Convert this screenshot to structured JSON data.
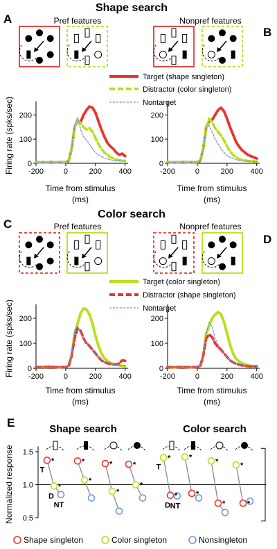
{
  "colors": {
    "shape": "#e8352f",
    "color": "#b8e01a",
    "nonsingleton": "#6f96d8",
    "gray": "#888888",
    "black": "#000000"
  },
  "titles": {
    "top": "Shape search",
    "middle": "Color search",
    "E_left": "Shape search",
    "E_right": "Color search"
  },
  "panel_letters": {
    "A": "A",
    "B": "B",
    "C": "C",
    "D": "D",
    "E": "E"
  },
  "subtitles": {
    "pref": "Pref features",
    "nonpref": "Nonpref features"
  },
  "legend_shape": {
    "target": "Target (shape singleton)",
    "distractor": "Distractor (color singleton)",
    "nontarget": "Nontarget"
  },
  "legend_color": {
    "target": "Target (color singleton)",
    "distractor": "Distractor (shape singleton)",
    "nontarget": "Nontarget"
  },
  "axes": {
    "xlabel_line1": "Time from stimulus",
    "xlabel_line2": "(ms)",
    "ylabel": "Firing rate (spks/sec)",
    "xticks": [
      "-200",
      "0",
      "200",
      "400"
    ],
    "yticks": [
      "0",
      "100",
      "200"
    ],
    "e_ylabel": "Normalized response",
    "e_yticks": [
      "0.5",
      "1.0",
      "1.5"
    ]
  },
  "e_labels": {
    "T": "T",
    "D": "D",
    "NT": "NT",
    "star": "*"
  },
  "e_legend": {
    "shape": "Shape singleton",
    "color": "Color singleton",
    "non": "Nonsingleton"
  },
  "chart_data": [
    {
      "type": "line",
      "panel": "A",
      "title": "Pref features",
      "xlabel": "Time from stimulus (ms)",
      "ylabel": "Firing rate (spks/sec)",
      "xlim": [
        -200,
        420
      ],
      "ylim": [
        0,
        250
      ],
      "series": [
        {
          "name": "Target (shape singleton)",
          "style": "solid",
          "color": "#e8352f",
          "x": [
            -200,
            -150,
            -100,
            -50,
            0,
            20,
            40,
            60,
            80,
            100,
            120,
            140,
            160,
            180,
            200,
            220,
            240,
            260,
            280,
            300,
            320,
            340,
            360,
            380,
            400
          ],
          "y": [
            5,
            4,
            5,
            4,
            5,
            10,
            60,
            150,
            175,
            170,
            200,
            220,
            235,
            230,
            210,
            175,
            140,
            110,
            85,
            70,
            60,
            45,
            35,
            40,
            30
          ]
        },
        {
          "name": "Distractor (color singleton)",
          "style": "dashed",
          "color": "#b8e01a",
          "x": [
            -200,
            -150,
            -100,
            -50,
            0,
            20,
            40,
            60,
            80,
            100,
            120,
            140,
            160,
            180,
            200,
            220,
            240,
            260,
            280,
            300,
            320,
            340,
            360,
            380,
            400
          ],
          "y": [
            5,
            4,
            5,
            4,
            5,
            10,
            60,
            150,
            180,
            165,
            150,
            140,
            145,
            130,
            105,
            80,
            60,
            45,
            35,
            25,
            20,
            15,
            12,
            12,
            10
          ]
        },
        {
          "name": "Nontarget",
          "style": "dotted",
          "color": "#6f96d8",
          "x": [
            -200,
            -150,
            -100,
            -50,
            0,
            20,
            40,
            60,
            80,
            100,
            120,
            140,
            160,
            180,
            200,
            220,
            240,
            260,
            280,
            300,
            320,
            340,
            360,
            380,
            400
          ],
          "y": [
            5,
            4,
            5,
            4,
            5,
            10,
            60,
            160,
            190,
            140,
            110,
            95,
            80,
            60,
            45,
            35,
            28,
            22,
            18,
            15,
            12,
            10,
            10,
            9,
            8
          ]
        }
      ]
    },
    {
      "type": "line",
      "panel": "B",
      "title": "Nonpref features",
      "xlabel": "Time from stimulus (ms)",
      "ylim": [
        0,
        250
      ],
      "xlim": [
        -200,
        420
      ],
      "series": [
        {
          "name": "Target (shape singleton)",
          "style": "solid",
          "color": "#e8352f",
          "x": [
            -200,
            -150,
            -100,
            -50,
            0,
            20,
            40,
            60,
            80,
            100,
            120,
            140,
            160,
            180,
            200,
            220,
            240,
            260,
            280,
            300,
            320,
            340,
            360,
            380,
            400
          ],
          "y": [
            5,
            4,
            5,
            4,
            5,
            10,
            60,
            150,
            175,
            180,
            200,
            220,
            230,
            215,
            185,
            150,
            120,
            90,
            70,
            55,
            45,
            35,
            30,
            25,
            20
          ]
        },
        {
          "name": "Distractor (color singleton)",
          "style": "dashed",
          "color": "#b8e01a",
          "x": [
            -200,
            -150,
            -100,
            -50,
            0,
            20,
            40,
            60,
            80,
            100,
            120,
            140,
            160,
            180,
            200,
            220,
            240,
            260,
            280,
            300,
            320,
            340,
            360,
            380,
            400
          ],
          "y": [
            5,
            4,
            5,
            4,
            5,
            10,
            60,
            150,
            185,
            170,
            145,
            130,
            115,
            95,
            70,
            50,
            35,
            25,
            18,
            15,
            12,
            10,
            9,
            8,
            8
          ]
        },
        {
          "name": "Nontarget",
          "style": "dotted",
          "color": "#6f96d8",
          "x": [
            -200,
            -150,
            -100,
            -50,
            0,
            20,
            40,
            60,
            80,
            100,
            120,
            140,
            160,
            180,
            200,
            220,
            240,
            260,
            280,
            300,
            320,
            340,
            360,
            380,
            400
          ],
          "y": [
            5,
            4,
            5,
            4,
            5,
            10,
            60,
            150,
            155,
            130,
            100,
            80,
            60,
            45,
            32,
            25,
            20,
            15,
            12,
            10,
            9,
            8,
            8,
            7,
            7
          ]
        }
      ]
    },
    {
      "type": "line",
      "panel": "C",
      "title": "Pref features",
      "xlabel": "Time from stimulus (ms)",
      "ylabel": "Firing rate (spks/sec)",
      "xlim": [
        -200,
        420
      ],
      "ylim": [
        0,
        250
      ],
      "series": [
        {
          "name": "Target (color singleton)",
          "style": "solid",
          "color": "#b8e01a",
          "x": [
            -200,
            -150,
            -100,
            -50,
            0,
            20,
            40,
            60,
            80,
            100,
            120,
            140,
            160,
            180,
            200,
            220,
            240,
            260,
            280,
            300,
            320,
            340,
            360,
            380,
            400
          ],
          "y": [
            5,
            6,
            8,
            4,
            5,
            10,
            50,
            140,
            180,
            220,
            240,
            235,
            215,
            180,
            130,
            90,
            60,
            40,
            30,
            22,
            18,
            15,
            12,
            10,
            8
          ]
        },
        {
          "name": "Distractor (shape singleton)",
          "style": "dashed",
          "color": "#e8352f",
          "x": [
            -200,
            -150,
            -100,
            -50,
            0,
            20,
            40,
            60,
            80,
            100,
            120,
            140,
            160,
            180,
            200,
            220,
            240,
            260,
            280,
            300,
            320,
            340,
            360,
            380,
            400
          ],
          "y": [
            5,
            4,
            5,
            4,
            5,
            10,
            50,
            120,
            160,
            150,
            120,
            100,
            90,
            75,
            60,
            45,
            32,
            25,
            20,
            18,
            15,
            15,
            20,
            32,
            30
          ]
        },
        {
          "name": "Nontarget",
          "style": "dotted",
          "color": "#6f96d8",
          "x": [
            -200,
            -150,
            -100,
            -50,
            0,
            20,
            40,
            60,
            80,
            100,
            120,
            140,
            160,
            180,
            200,
            220,
            240,
            260,
            280,
            300,
            320,
            340,
            360,
            380,
            400
          ],
          "y": [
            5,
            4,
            5,
            4,
            5,
            10,
            50,
            150,
            170,
            140,
            120,
            105,
            95,
            80,
            60,
            45,
            35,
            28,
            22,
            18,
            16,
            14,
            12,
            10,
            10
          ]
        }
      ]
    },
    {
      "type": "line",
      "panel": "D",
      "title": "Nonpref features",
      "xlabel": "Time from stimulus (ms)",
      "xlim": [
        -200,
        420
      ],
      "ylim": [
        0,
        250
      ],
      "series": [
        {
          "name": "Target (color singleton)",
          "style": "solid",
          "color": "#b8e01a",
          "x": [
            -200,
            -150,
            -100,
            -50,
            0,
            20,
            40,
            60,
            80,
            100,
            120,
            140,
            160,
            180,
            200,
            220,
            240,
            260,
            280,
            300,
            320,
            340,
            360,
            380,
            400
          ],
          "y": [
            5,
            4,
            6,
            4,
            5,
            10,
            50,
            140,
            170,
            200,
            215,
            225,
            215,
            185,
            140,
            95,
            60,
            38,
            28,
            20,
            16,
            12,
            10,
            8,
            8
          ]
        },
        {
          "name": "Distractor (shape singleton)",
          "style": "dashed",
          "color": "#e8352f",
          "x": [
            -200,
            -150,
            -100,
            -50,
            0,
            20,
            40,
            60,
            80,
            100,
            120,
            140,
            160,
            180,
            200,
            220,
            240,
            260,
            280,
            300,
            320,
            340,
            360,
            380,
            400
          ],
          "y": [
            5,
            4,
            5,
            4,
            5,
            10,
            50,
            120,
            135,
            125,
            100,
            85,
            75,
            60,
            45,
            32,
            25,
            18,
            15,
            12,
            10,
            9,
            8,
            8,
            8
          ]
        },
        {
          "name": "Nontarget",
          "style": "dotted",
          "color": "#6f96d8",
          "x": [
            -200,
            -150,
            -100,
            -50,
            0,
            20,
            40,
            60,
            80,
            100,
            120,
            140,
            160,
            180,
            200,
            220,
            240,
            260,
            280,
            300,
            320,
            340,
            360,
            380,
            400
          ],
          "y": [
            5,
            4,
            5,
            4,
            5,
            10,
            50,
            140,
            185,
            165,
            120,
            95,
            80,
            60,
            45,
            35,
            28,
            22,
            18,
            15,
            12,
            10,
            10,
            9,
            9
          ]
        }
      ]
    },
    {
      "type": "scatter",
      "panel": "E",
      "title": "Shape search",
      "ylabel": "Normalized response",
      "ylim": [
        0.4,
        1.6
      ],
      "groups": [
        {
          "target": 1.37,
          "distractor": 0.98,
          "nontarget": 0.85,
          "icon": "open-rect",
          "labels": true
        },
        {
          "target": 1.36,
          "distractor": 1.07,
          "nontarget": 0.8,
          "icon": "filled-rect"
        },
        {
          "target": 1.32,
          "distractor": 0.9,
          "nontarget": 0.6,
          "icon": "open-circle"
        },
        {
          "target": 1.31,
          "distractor": 1.0,
          "nontarget": 0.8,
          "icon": "filled-circle"
        }
      ]
    },
    {
      "type": "scatter",
      "panel": "E",
      "title": "Color search",
      "ylim": [
        0.4,
        1.6
      ],
      "groups": [
        {
          "target": 1.41,
          "distractor": 0.84,
          "nontarget": 0.83,
          "icon": "open-rect",
          "labels": true
        },
        {
          "target": 1.42,
          "distractor": 0.87,
          "nontarget": 0.8,
          "icon": "filled-rect"
        },
        {
          "target": 1.36,
          "distractor": 0.72,
          "nontarget": 0.58,
          "icon": "open-circle"
        },
        {
          "target": 1.3,
          "distractor": 0.72,
          "nontarget": 0.75,
          "icon": "filled-circle"
        }
      ]
    }
  ]
}
